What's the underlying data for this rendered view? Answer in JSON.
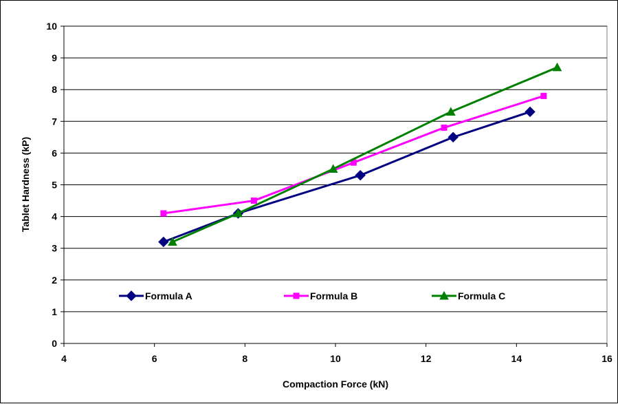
{
  "chart_data": {
    "type": "line",
    "xlabel": "Compaction Force (kN)",
    "ylabel": "Tablet Hardness (kP)",
    "xlim": [
      4,
      16
    ],
    "ylim": [
      0,
      10
    ],
    "x_ticks": [
      "4",
      "6",
      "8",
      "10",
      "12",
      "14",
      "16"
    ],
    "y_ticks": [
      "0",
      "1",
      "2",
      "3",
      "4",
      "5",
      "6",
      "7",
      "8",
      "9",
      "10"
    ],
    "grid": "horizontal",
    "legend_position": "inside-bottom",
    "series": [
      {
        "name": "Formula A",
        "color": "#000080",
        "marker": "diamond",
        "x": [
          6.2,
          7.85,
          10.55,
          12.6,
          14.3
        ],
        "y": [
          3.2,
          4.1,
          5.3,
          6.5,
          7.3
        ]
      },
      {
        "name": "Formula B",
        "color": "#ff00ff",
        "marker": "square",
        "x": [
          6.2,
          8.2,
          10.4,
          12.4,
          14.6
        ],
        "y": [
          4.1,
          4.5,
          5.7,
          6.8,
          7.8
        ]
      },
      {
        "name": "Formula C",
        "color": "#008000",
        "marker": "triangle",
        "x": [
          6.4,
          7.85,
          9.95,
          12.55,
          14.9
        ],
        "y": [
          3.2,
          4.1,
          5.5,
          7.3,
          8.7
        ]
      }
    ]
  }
}
